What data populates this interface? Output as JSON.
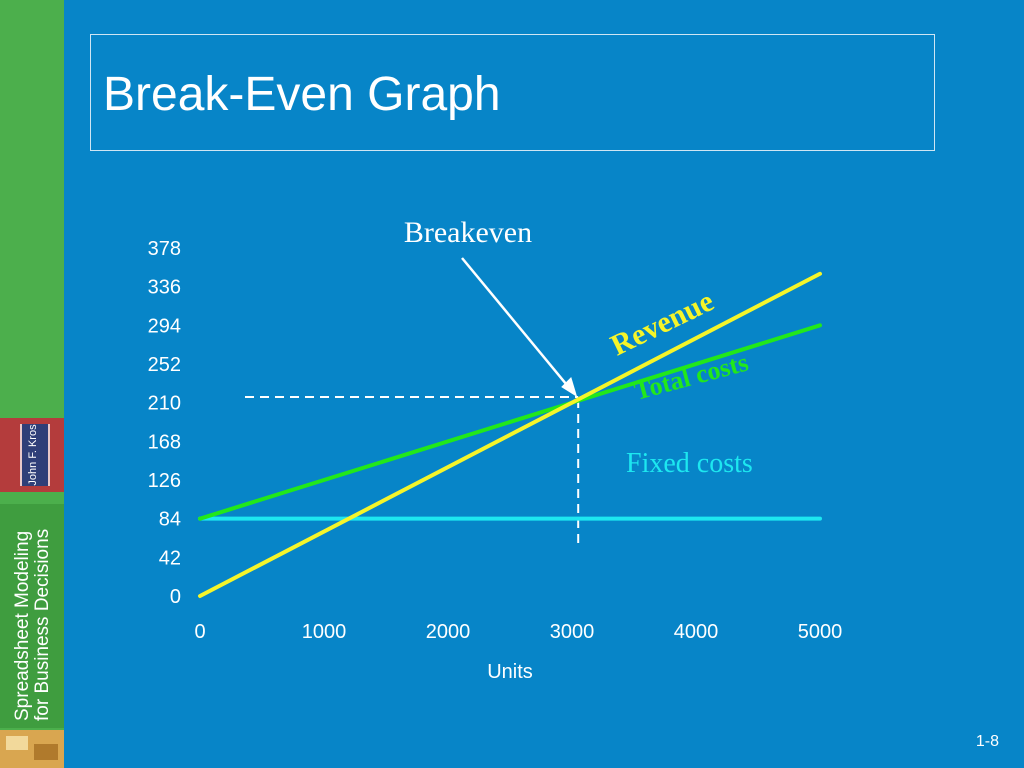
{
  "slide": {
    "title": "Break-Even Graph",
    "page_number": "1-8"
  },
  "sidebar": {
    "author": "John F. Kros",
    "book_title_line1": "Spreadsheet Modeling",
    "book_title_line2": "for Business Decisions"
  },
  "colors": {
    "background": "#0785c8",
    "revenue": "#f5f52a",
    "total_costs": "#22e81a",
    "fixed_costs": "#1de7f0",
    "text": "#ffffff"
  },
  "chart_data": {
    "type": "line",
    "xlabel": "Units",
    "ylabel": "",
    "xlim": [
      0,
      5000
    ],
    "ylim": [
      0,
      378
    ],
    "x_ticks": [
      0,
      1000,
      2000,
      3000,
      4000,
      5000
    ],
    "y_ticks": [
      0,
      42,
      84,
      126,
      168,
      210,
      252,
      294,
      336,
      378
    ],
    "grid": false,
    "series": [
      {
        "name": "Revenue",
        "x": [
          0,
          5000
        ],
        "y": [
          0,
          350
        ]
      },
      {
        "name": "Total costs",
        "x": [
          0,
          5000
        ],
        "y": [
          84,
          294
        ]
      },
      {
        "name": "Fixed costs",
        "x": [
          0,
          5000
        ],
        "y": [
          84,
          84
        ]
      }
    ],
    "breakeven": {
      "label": "Breakeven",
      "x": 3050,
      "y": 214
    }
  }
}
